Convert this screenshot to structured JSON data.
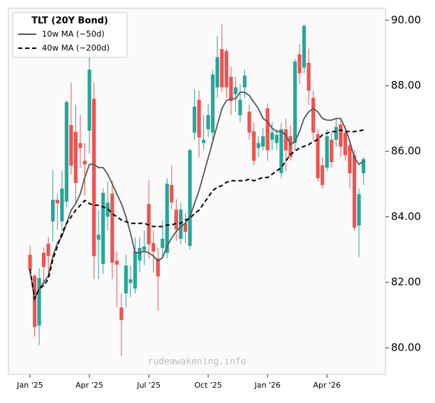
{
  "chart_data": {
    "type": "candlestick",
    "legend_title": "TLT (20Y Bond)",
    "watermark": "rudeawakening.info",
    "up_color": "#26a69a",
    "down_color": "#ef5350",
    "open": [
      82.84,
      82.2,
      80.68,
      82.9,
      83.18,
      83.86,
      84.52,
      83.86,
      84.46,
      86.8,
      86.59,
      86.25,
      85.71,
      86.63,
      87.6,
      83.3,
      82.56,
      84.0,
      84.71,
      82.66,
      81.23,
      81.66,
      81.98,
      81.81,
      82.66,
      82.98,
      84.39,
      83.2,
      82.73,
      83.05,
      82.9,
      84.97,
      84.22,
      83.33,
      83.8,
      83.11,
      86.57,
      87.57,
      86.25,
      86.67,
      86.57,
      87.95,
      89.12,
      89.06,
      88.27,
      87.74,
      87.1,
      87.95,
      87.21,
      86.61,
      86.1,
      86.14,
      87.31,
      86.35,
      86.25,
      85.33,
      86.67,
      86.46,
      86.25,
      88.96,
      88.55,
      88.7,
      87.63,
      86.52,
      85.57,
      85.5,
      86.35,
      86.35,
      86.82,
      86.57,
      86.18,
      85.88,
      83.73,
      85.33
    ],
    "high": [
      83.12,
      82.26,
      82.43,
      83.05,
      83.37,
      85.44,
      84.7,
      85.4,
      87.57,
      88.1,
      87.42,
      87.1,
      86.25,
      89.0,
      88.1,
      84.2,
      84.86,
      85.07,
      85.1,
      82.94,
      81.66,
      82.84,
      82.52,
      83.37,
      83.37,
      83.58,
      85.12,
      83.58,
      83.05,
      83.9,
      85.18,
      85.57,
      84.54,
      84.43,
      84.12,
      86.08,
      87.89,
      87.85,
      87.1,
      87.46,
      88.49,
      89.51,
      89.87,
      89.12,
      88.59,
      88.27,
      88.06,
      88.49,
      87.42,
      86.89,
      86.46,
      86.72,
      87.46,
      86.89,
      86.67,
      86.86,
      86.99,
      86.78,
      88.81,
      89.27,
      89.87,
      89.13,
      87.85,
      86.67,
      85.82,
      86.67,
      86.57,
      86.99,
      86.99,
      86.78,
      86.35,
      86.03,
      84.86,
      85.82
    ],
    "low": [
      82.2,
      80.34,
      80.08,
      81.88,
      82.26,
      83.24,
      83.6,
      83.58,
      84.29,
      85.29,
      84.44,
      85.5,
      84.65,
      85.93,
      82.1,
      82.1,
      82.26,
      83.58,
      82.1,
      81.23,
      79.74,
      81.23,
      81.55,
      81.66,
      82.3,
      82.52,
      82.73,
      82.3,
      81.13,
      82.73,
      82.73,
      84.22,
      83.26,
      83.16,
      83.2,
      83.0,
      86.35,
      85.82,
      86.03,
      86.44,
      86.35,
      87.63,
      87.8,
      87.63,
      87.1,
      87.2,
      86.89,
      87.63,
      86.35,
      85.57,
      85.82,
      86.03,
      85.71,
      86.03,
      86.03,
      85.18,
      85.39,
      85.71,
      86.03,
      88.06,
      88.38,
      87.42,
      86.35,
      85.07,
      84.86,
      85.39,
      85.5,
      86.14,
      85.82,
      85.71,
      84.86,
      83.58,
      82.77,
      84.97
    ],
    "close": [
      82.37,
      80.64,
      82.13,
      82.47,
      82.8,
      84.52,
      84.41,
      84.86,
      87.5,
      85.56,
      85.03,
      86.1,
      85.6,
      88.49,
      82.8,
      83.45,
      84.73,
      84.43,
      82.6,
      82.54,
      80.85,
      82.51,
      82.09,
      82.94,
      83.05,
      83.09,
      83.16,
      82.94,
      82.18,
      83.33,
      85.01,
      84.44,
      83.62,
      84.22,
      83.54,
      86.03,
      87.36,
      86.42,
      86.35,
      87.1,
      88.34,
      88.87,
      87.95,
      87.95,
      87.53,
      87.95,
      87.57,
      88.31,
      86.57,
      85.71,
      86.25,
      86.46,
      86.03,
      86.57,
      86.5,
      86.67,
      86.03,
      85.82,
      88.74,
      88.38,
      89.83,
      87.85,
      86.57,
      85.18,
      84.97,
      86.46,
      85.67,
      86.74,
      86.14,
      85.88,
      85.33,
      83.67,
      84.69,
      85.76
    ],
    "series": [
      {
        "name": "10w MA (~50d)",
        "color": "#555555",
        "dash": false,
        "values": [
          82.35,
          81.5,
          81.8,
          82.0,
          82.2,
          82.8,
          83.2,
          83.4,
          83.8,
          84.2,
          84.4,
          84.7,
          85.2,
          85.6,
          85.6,
          85.5,
          85.5,
          85.3,
          85.0,
          84.7,
          84.4,
          84.0,
          83.5,
          82.9,
          82.9,
          82.95,
          82.9,
          82.8,
          82.65,
          82.75,
          83.1,
          83.35,
          83.55,
          83.7,
          83.8,
          84.0,
          84.4,
          84.8,
          85.3,
          85.8,
          86.3,
          86.8,
          87.3,
          87.55,
          87.6,
          87.6,
          87.8,
          87.8,
          87.7,
          87.5,
          87.3,
          87.0,
          86.9,
          86.7,
          86.6,
          86.6,
          86.5,
          86.2,
          86.3,
          86.6,
          87.0,
          87.2,
          87.3,
          87.2,
          87.0,
          86.95,
          86.95,
          87.0,
          87.0,
          86.7,
          86.3,
          85.8,
          85.6,
          85.7
        ]
      },
      {
        "name": "40w MA (~200d)",
        "color": "#000000",
        "dash": true,
        "values": [
          82.4,
          81.5,
          81.8,
          81.9,
          82.1,
          82.7,
          83.1,
          83.5,
          83.8,
          84.0,
          84.2,
          84.35,
          84.5,
          84.4,
          84.35,
          84.35,
          84.3,
          84.25,
          84.1,
          84.0,
          83.9,
          83.85,
          83.8,
          83.8,
          83.8,
          83.8,
          83.75,
          83.7,
          83.7,
          83.7,
          83.75,
          83.75,
          83.8,
          83.8,
          83.9,
          83.95,
          84.1,
          84.2,
          84.4,
          84.6,
          84.8,
          84.9,
          84.95,
          85.05,
          85.1,
          85.1,
          85.1,
          85.1,
          85.15,
          85.1,
          85.15,
          85.2,
          85.2,
          85.3,
          85.4,
          85.5,
          85.7,
          85.9,
          86.0,
          86.1,
          86.15,
          86.2,
          86.3,
          86.35,
          86.5,
          86.55,
          86.6,
          86.6,
          86.65,
          86.6,
          86.6,
          86.6,
          86.62,
          86.65
        ]
      }
    ],
    "xlim": [
      -4.74,
      77.8
    ],
    "xticks": [
      {
        "value": 0,
        "label": "Jan '25"
      },
      {
        "value": 13,
        "label": "Apr '25"
      },
      {
        "value": 26,
        "label": "Jul '25"
      },
      {
        "value": 39,
        "label": "Oct '25"
      },
      {
        "value": 52,
        "label": "Jan '26"
      },
      {
        "value": 65,
        "label": "Apr '26"
      }
    ],
    "ylim": [
      79.19,
      90.36
    ],
    "yticks": [
      {
        "value": 80,
        "label": "80.00"
      },
      {
        "value": 82,
        "label": "82.00"
      },
      {
        "value": 84,
        "label": "84.00"
      },
      {
        "value": 86,
        "label": "86.00"
      },
      {
        "value": 88,
        "label": "88.00"
      },
      {
        "value": 90,
        "label": "90.00"
      }
    ]
  }
}
